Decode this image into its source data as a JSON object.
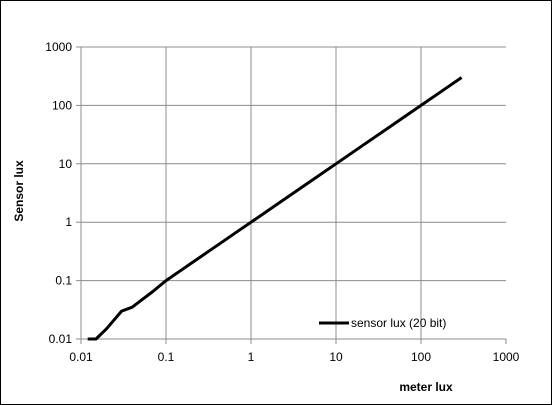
{
  "chart_data": {
    "type": "line",
    "xlabel": "meter lux",
    "ylabel": "Sensor lux",
    "xscale": "log",
    "yscale": "log",
    "xlim": [
      0.01,
      1000
    ],
    "ylim": [
      0.01,
      1000
    ],
    "grid": true,
    "legend_position": "bottom-right",
    "x_tick_labels": [
      "0.01",
      "0.1",
      "1",
      "10",
      "100",
      "1000"
    ],
    "y_tick_labels": [
      "0.01",
      "0.1",
      "1",
      "10",
      "100",
      "1000"
    ],
    "x_tick_values": [
      0.01,
      0.1,
      1,
      10,
      100,
      1000
    ],
    "y_tick_values": [
      0.01,
      0.1,
      1,
      10,
      100,
      1000
    ],
    "series": [
      {
        "name": "sensor lux (20 bit)",
        "color": "#000000",
        "x": [
          0.012,
          0.015,
          0.02,
          0.03,
          0.04,
          0.05,
          0.07,
          0.1,
          0.15,
          0.2,
          0.3,
          0.5,
          0.7,
          1,
          2,
          5,
          10,
          20,
          50,
          100,
          200,
          300
        ],
        "y": [
          0.01,
          0.01,
          0.015,
          0.03,
          0.035,
          0.045,
          0.065,
          0.1,
          0.15,
          0.2,
          0.3,
          0.5,
          0.7,
          1,
          2,
          5,
          10,
          20,
          50,
          100,
          200,
          300
        ]
      }
    ]
  }
}
